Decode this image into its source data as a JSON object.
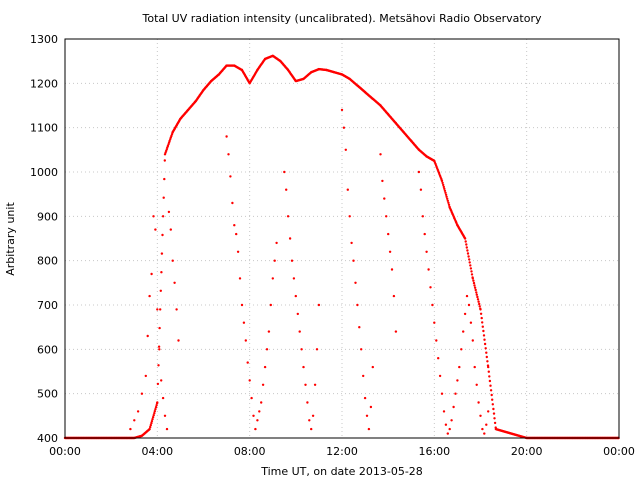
{
  "chart_data": {
    "type": "scatter",
    "title": "Total UV radiation intensity (uncalibrated). Metsähovi Radio Observatory",
    "xlabel": "Time UT, on date 2013-05-28",
    "ylabel": "Arbitrary unit",
    "xlim": [
      "2013-05-28T00:00",
      "2013-05-29T00:00"
    ],
    "ylim": [
      400,
      1300
    ],
    "x_ticks": [
      "00:00",
      "04:00",
      "08:00",
      "12:00",
      "16:00",
      "20:00",
      "00:00"
    ],
    "y_ticks": [
      400,
      500,
      600,
      700,
      800,
      900,
      1000,
      1100,
      1200,
      1300
    ],
    "grid": true,
    "legend": "none",
    "color": "#ff0000",
    "series": [
      {
        "x": [
          "00:00",
          "01:00",
          "02:00",
          "03:00",
          "03:20",
          "03:40",
          "04:00",
          "04:20",
          "04:40",
          "05:00",
          "05:20",
          "05:40",
          "06:00",
          "06:20",
          "06:40",
          "07:00",
          "07:20",
          "07:40",
          "08:00",
          "08:20",
          "08:40",
          "09:00",
          "09:20",
          "09:40",
          "10:00",
          "10:20",
          "10:40",
          "11:00",
          "11:20",
          "11:40",
          "12:00",
          "12:20",
          "12:40",
          "13:00",
          "13:20",
          "13:40",
          "14:00",
          "14:20",
          "14:40",
          "15:00",
          "15:20",
          "15:40",
          "16:00",
          "16:20",
          "16:40",
          "17:00",
          "17:20",
          "17:40",
          "18:00",
          "18:20",
          "18:40",
          "20:00",
          "22:00",
          "23:59"
        ],
        "y": [
          400,
          400,
          400,
          400,
          405,
          420,
          480,
          1040,
          1090,
          1120,
          1140,
          1160,
          1185,
          1205,
          1220,
          1240,
          1240,
          1230,
          1200,
          1230,
          1255,
          1262,
          1250,
          1230,
          1205,
          1210,
          1225,
          1232,
          1230,
          1225,
          1220,
          1210,
          1195,
          1180,
          1165,
          1150,
          1130,
          1110,
          1090,
          1070,
          1050,
          1035,
          1025,
          980,
          920,
          880,
          850,
          760,
          690,
          560,
          420,
          400,
          400,
          400
        ]
      }
    ],
    "dips": [
      {
        "x": [
          "02:50",
          "03:00",
          "03:10",
          "03:20",
          "03:30",
          "03:35",
          "03:40",
          "03:45",
          "03:50",
          "03:55",
          "04:00",
          "04:05",
          "04:10",
          "04:15",
          "04:20",
          "04:25"
        ],
        "y": [
          420,
          440,
          460,
          500,
          540,
          630,
          720,
          770,
          900,
          870,
          690,
          600,
          530,
          490,
          450,
          420
        ]
      },
      {
        "x": [
          "04:30",
          "04:35",
          "04:40",
          "04:45",
          "04:50",
          "04:55"
        ],
        "y": [
          910,
          870,
          800,
          750,
          690,
          620
        ]
      },
      {
        "x": [
          "07:00",
          "07:05",
          "07:10",
          "07:15",
          "07:20",
          "07:25",
          "07:30",
          "07:35",
          "07:40",
          "07:45",
          "07:50",
          "07:55",
          "08:00",
          "08:05",
          "08:10",
          "08:15",
          "08:20",
          "08:25",
          "08:30",
          "08:35",
          "08:40",
          "08:45",
          "08:50",
          "08:55",
          "09:00",
          "09:05",
          "09:10"
        ],
        "y": [
          1080,
          1040,
          990,
          930,
          880,
          860,
          820,
          760,
          700,
          660,
          620,
          570,
          530,
          490,
          450,
          420,
          440,
          460,
          480,
          520,
          560,
          600,
          640,
          700,
          760,
          800,
          840
        ]
      },
      {
        "x": [
          "09:30",
          "09:35",
          "09:40",
          "09:45",
          "09:50",
          "09:55",
          "10:00",
          "10:05",
          "10:10",
          "10:15",
          "10:20",
          "10:25",
          "10:30",
          "10:35",
          "10:40",
          "10:45",
          "10:50",
          "10:55",
          "11:00"
        ],
        "y": [
          1000,
          960,
          900,
          850,
          800,
          760,
          720,
          680,
          640,
          600,
          560,
          520,
          480,
          440,
          420,
          450,
          520,
          600,
          700
        ]
      },
      {
        "x": [
          "12:00",
          "12:05",
          "12:10",
          "12:15",
          "12:20",
          "12:25",
          "12:30",
          "12:35",
          "12:40",
          "12:45",
          "12:50",
          "12:55",
          "13:00",
          "13:05",
          "13:10",
          "13:15",
          "13:20"
        ],
        "y": [
          1140,
          1100,
          1050,
          960,
          900,
          840,
          800,
          750,
          700,
          650,
          600,
          540,
          490,
          450,
          420,
          470,
          560
        ]
      },
      {
        "x": [
          "13:40",
          "13:45",
          "13:50",
          "13:55",
          "14:00",
          "14:05",
          "14:10",
          "14:15",
          "14:20"
        ],
        "y": [
          1040,
          980,
          940,
          900,
          860,
          820,
          780,
          720,
          640
        ]
      },
      {
        "x": [
          "15:20",
          "15:25",
          "15:30",
          "15:35",
          "15:40",
          "15:45",
          "15:50",
          "15:55",
          "16:00",
          "16:05",
          "16:10",
          "16:15",
          "16:20",
          "16:25",
          "16:30",
          "16:35",
          "16:40",
          "16:45",
          "16:50",
          "16:55",
          "17:00",
          "17:05",
          "17:10",
          "17:15",
          "17:20",
          "17:25",
          "17:30",
          "17:35",
          "17:40",
          "17:45",
          "17:50",
          "17:55",
          "18:00",
          "18:05",
          "18:10",
          "18:15",
          "18:20"
        ],
        "y": [
          1000,
          960,
          900,
          860,
          820,
          780,
          740,
          700,
          660,
          620,
          580,
          540,
          500,
          460,
          430,
          410,
          420,
          440,
          470,
          500,
          530,
          560,
          600,
          640,
          680,
          720,
          700,
          660,
          620,
          560,
          520,
          480,
          450,
          420,
          410,
          430,
          460
        ]
      }
    ]
  }
}
